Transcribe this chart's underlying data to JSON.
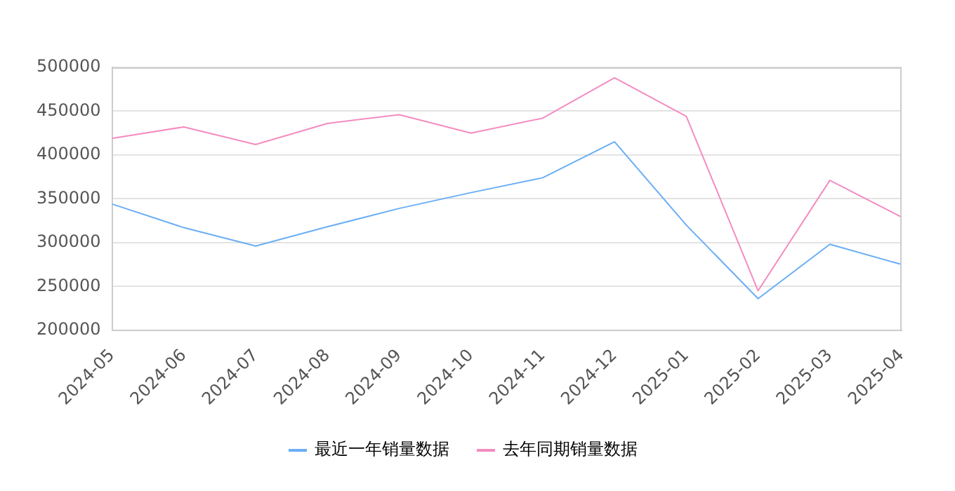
{
  "chart_data": {
    "type": "line",
    "categories": [
      "2024-05",
      "2024-06",
      "2024-07",
      "2024-08",
      "2024-09",
      "2024-10",
      "2024-11",
      "2024-12",
      "2025-01",
      "2025-02",
      "2025-03",
      "2025-04"
    ],
    "series": [
      {
        "name": "最近一年销量数据",
        "color": "#6aaef5",
        "values": [
          344000,
          317000,
          296000,
          318000,
          339000,
          357000,
          374000,
          415000,
          320000,
          236000,
          298000,
          275000
        ]
      },
      {
        "name": "去年同期销量数据",
        "color": "#f48cc0",
        "values": [
          419000,
          432000,
          412000,
          436000,
          446000,
          425000,
          442000,
          488000,
          444000,
          245000,
          371000,
          329000
        ]
      }
    ],
    "ylim": [
      200000,
      500000
    ],
    "yticks": [
      200000,
      250000,
      300000,
      350000,
      400000,
      450000,
      500000
    ],
    "grid": "y",
    "legend": "bottom",
    "marker": "none",
    "line_style": "solid"
  }
}
